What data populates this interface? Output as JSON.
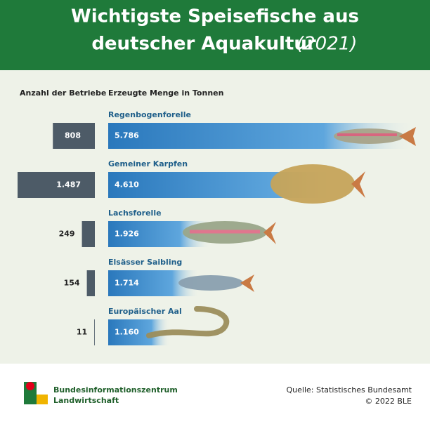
{
  "chart_data": {
    "type": "bar",
    "title": [
      "Wichtigste Speisefische aus",
      "deutscher Aquakultur"
    ],
    "title_year": "(2021)",
    "categories": [
      "Regenbogenforelle",
      "Gemeiner Karpfen",
      "Lachsforelle",
      "Elsässer Saibling",
      "Europäischer Aal"
    ],
    "series": [
      {
        "name": "Anzahl der Betriebe",
        "color": "#4d5b67",
        "values": [
          808,
          1487,
          249,
          154,
          11
        ],
        "value_labels": [
          "808",
          "1.487",
          "249",
          "154",
          "11"
        ]
      },
      {
        "name": "Erzeugte Menge in Tonnen",
        "color": "#2d7fc2",
        "values": [
          5786,
          4610,
          1926,
          1714,
          1160
        ],
        "value_labels": [
          "5.786",
          "4.610",
          "1.926",
          "1.714",
          "1.160"
        ]
      }
    ]
  },
  "footer": {
    "logo": [
      "Bundesinformationszentrum",
      "Landwirtschaft"
    ],
    "source": "Quelle: Statistisches Bundesamt",
    "copyright": "© 2022 BLE"
  }
}
